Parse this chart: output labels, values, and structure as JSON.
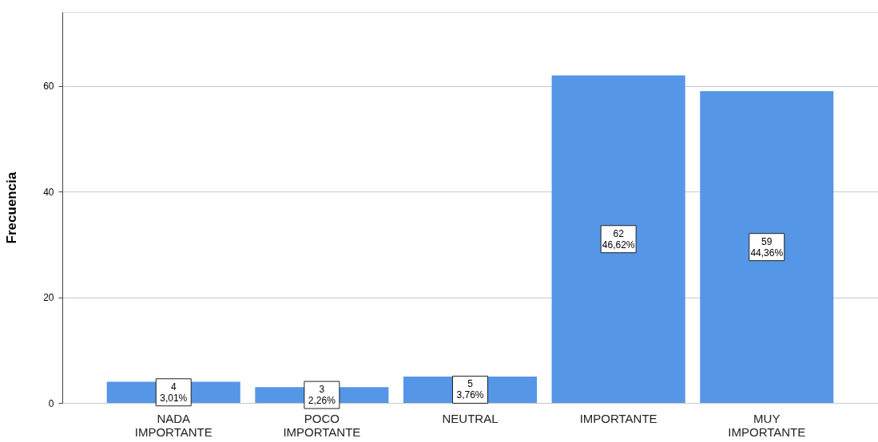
{
  "chart_data": {
    "type": "bar",
    "ylabel": "Frecuencia",
    "categories": [
      "NADA IMPORTANTE",
      "POCO IMPORTANTE",
      "NEUTRAL",
      "IMPORTANTE",
      "MUY IMPORTANTE"
    ],
    "values": [
      4,
      3,
      5,
      62,
      59
    ],
    "value_labels": [
      "4\n3,01%",
      "3\n2,26%",
      "5\n3,76%",
      "62\n46,62%",
      "59\n44,36%"
    ],
    "color": "#5596e6",
    "ylim": [
      0,
      74
    ],
    "yticks": [
      0,
      20,
      40,
      60
    ],
    "grid": "y"
  }
}
